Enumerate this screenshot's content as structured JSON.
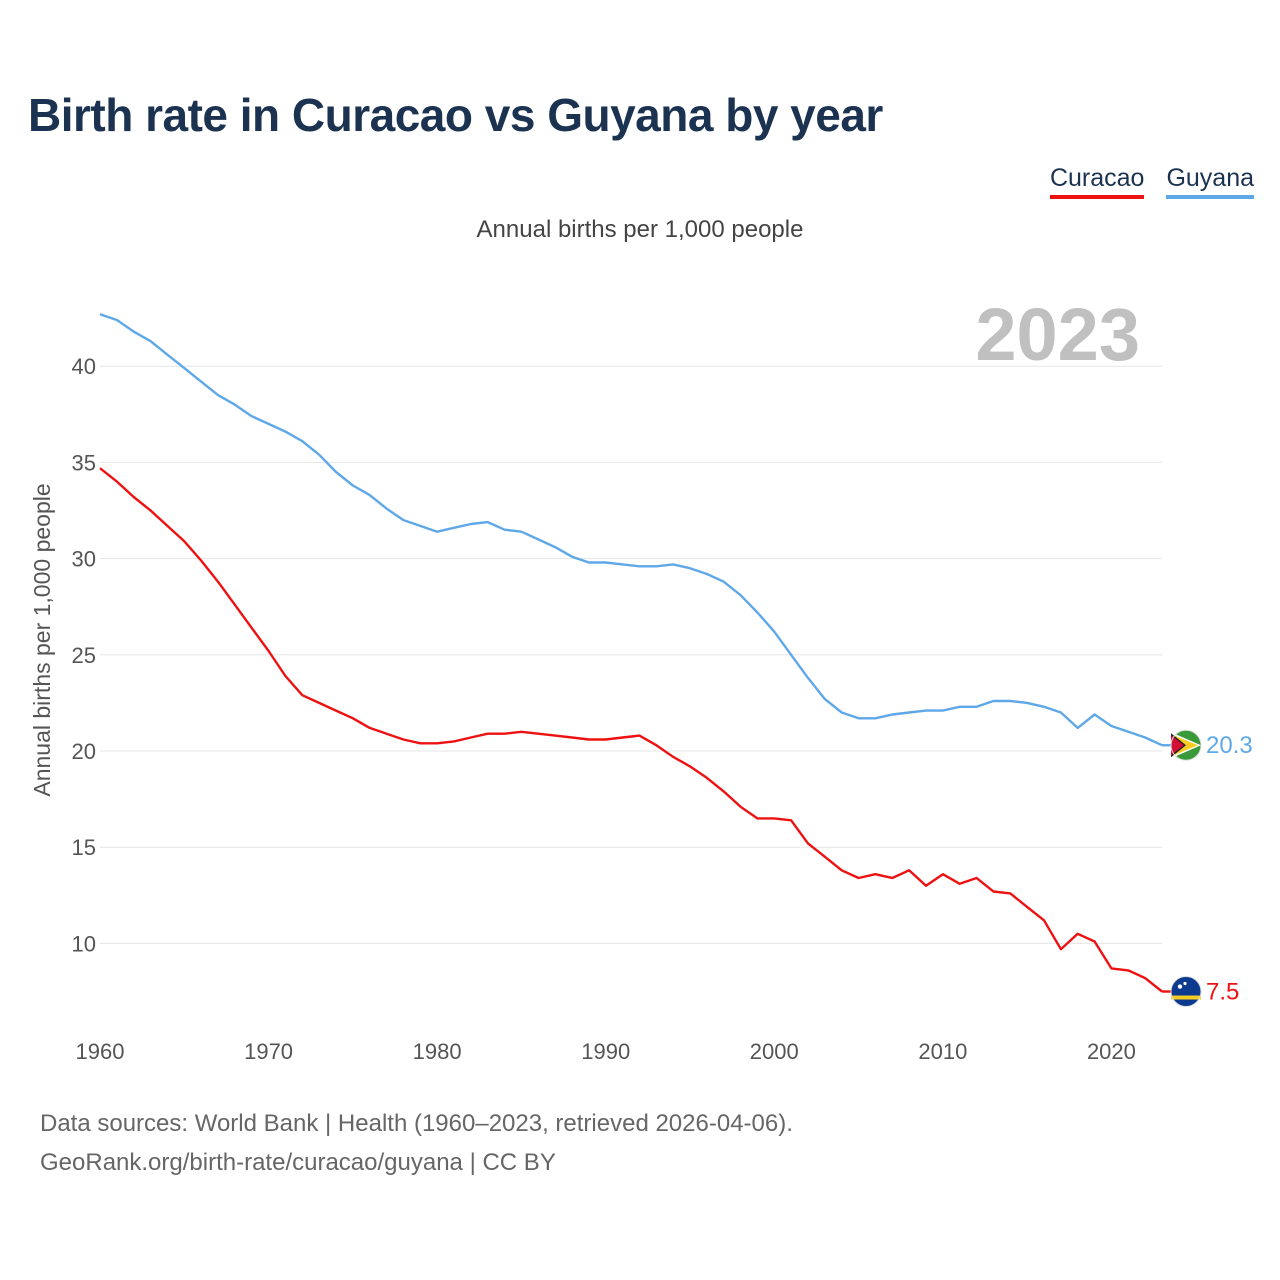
{
  "title": "Birth rate in Curacao vs Guyana by year",
  "subtitle": "Annual births per 1,000 people",
  "legend": {
    "curacao": "Curacao",
    "guyana": "Guyana"
  },
  "footer": {
    "line1": "Data sources: World Bank | Health (1960–2023, retrieved 2026-04-06).",
    "line2": "GeoRank.org/birth-rate/curacao/guyana | CC BY"
  },
  "chart_data": {
    "type": "line",
    "title": "Birth rate in Curacao vs Guyana by year",
    "ylabel": "Annual births per 1,000 people",
    "xlabel": "",
    "year_label": "2023",
    "xlim": [
      1960,
      2023
    ],
    "ylim": [
      5.5,
      45
    ],
    "x_ticks": [
      1960,
      1970,
      1980,
      1990,
      2000,
      2010,
      2020
    ],
    "y_ticks": [
      10,
      15,
      20,
      25,
      30,
      35,
      40
    ],
    "grid": true,
    "legend_position": "top-right",
    "x": [
      1960,
      1961,
      1962,
      1963,
      1964,
      1965,
      1966,
      1967,
      1968,
      1969,
      1970,
      1971,
      1972,
      1973,
      1974,
      1975,
      1976,
      1977,
      1978,
      1979,
      1980,
      1981,
      1982,
      1983,
      1984,
      1985,
      1986,
      1987,
      1988,
      1989,
      1990,
      1991,
      1992,
      1993,
      1994,
      1995,
      1996,
      1997,
      1998,
      1999,
      2000,
      2001,
      2002,
      2003,
      2004,
      2005,
      2006,
      2007,
      2008,
      2009,
      2010,
      2011,
      2012,
      2013,
      2014,
      2015,
      2016,
      2017,
      2018,
      2019,
      2020,
      2021,
      2022,
      2023
    ],
    "series": [
      {
        "name": "Curacao",
        "color": "#ee1111",
        "end_label": "7.5",
        "values": [
          34.7,
          34.0,
          33.2,
          32.5,
          31.7,
          30.9,
          29.9,
          28.8,
          27.6,
          26.4,
          25.2,
          23.9,
          22.9,
          22.5,
          22.1,
          21.7,
          21.2,
          20.9,
          20.6,
          20.4,
          20.4,
          20.5,
          20.7,
          20.9,
          20.9,
          21.0,
          20.9,
          20.8,
          20.7,
          20.6,
          20.6,
          20.7,
          20.8,
          20.3,
          19.7,
          19.2,
          18.6,
          17.9,
          17.1,
          16.5,
          16.5,
          16.4,
          15.2,
          14.5,
          13.8,
          13.4,
          13.6,
          13.4,
          13.8,
          13.0,
          13.6,
          13.1,
          13.4,
          12.7,
          12.6,
          11.9,
          11.2,
          9.7,
          10.5,
          10.1,
          8.7,
          8.6,
          8.2,
          7.5
        ]
      },
      {
        "name": "Guyana",
        "color": "#5fa8e8",
        "end_label": "20.3",
        "values": [
          42.7,
          42.4,
          41.8,
          41.3,
          40.6,
          39.9,
          39.2,
          38.5,
          38.0,
          37.4,
          37.0,
          36.6,
          36.1,
          35.4,
          34.5,
          33.8,
          33.3,
          32.6,
          32.0,
          31.7,
          31.4,
          31.6,
          31.8,
          31.9,
          31.5,
          31.4,
          31.0,
          30.6,
          30.1,
          29.8,
          29.8,
          29.7,
          29.6,
          29.6,
          29.7,
          29.5,
          29.2,
          28.8,
          28.1,
          27.2,
          26.2,
          25.0,
          23.8,
          22.7,
          22.0,
          21.7,
          21.7,
          21.9,
          22.0,
          22.1,
          22.1,
          22.3,
          22.3,
          22.6,
          22.6,
          22.5,
          22.3,
          22.0,
          21.2,
          21.9,
          21.3,
          21.0,
          20.7,
          20.3
        ]
      }
    ]
  }
}
